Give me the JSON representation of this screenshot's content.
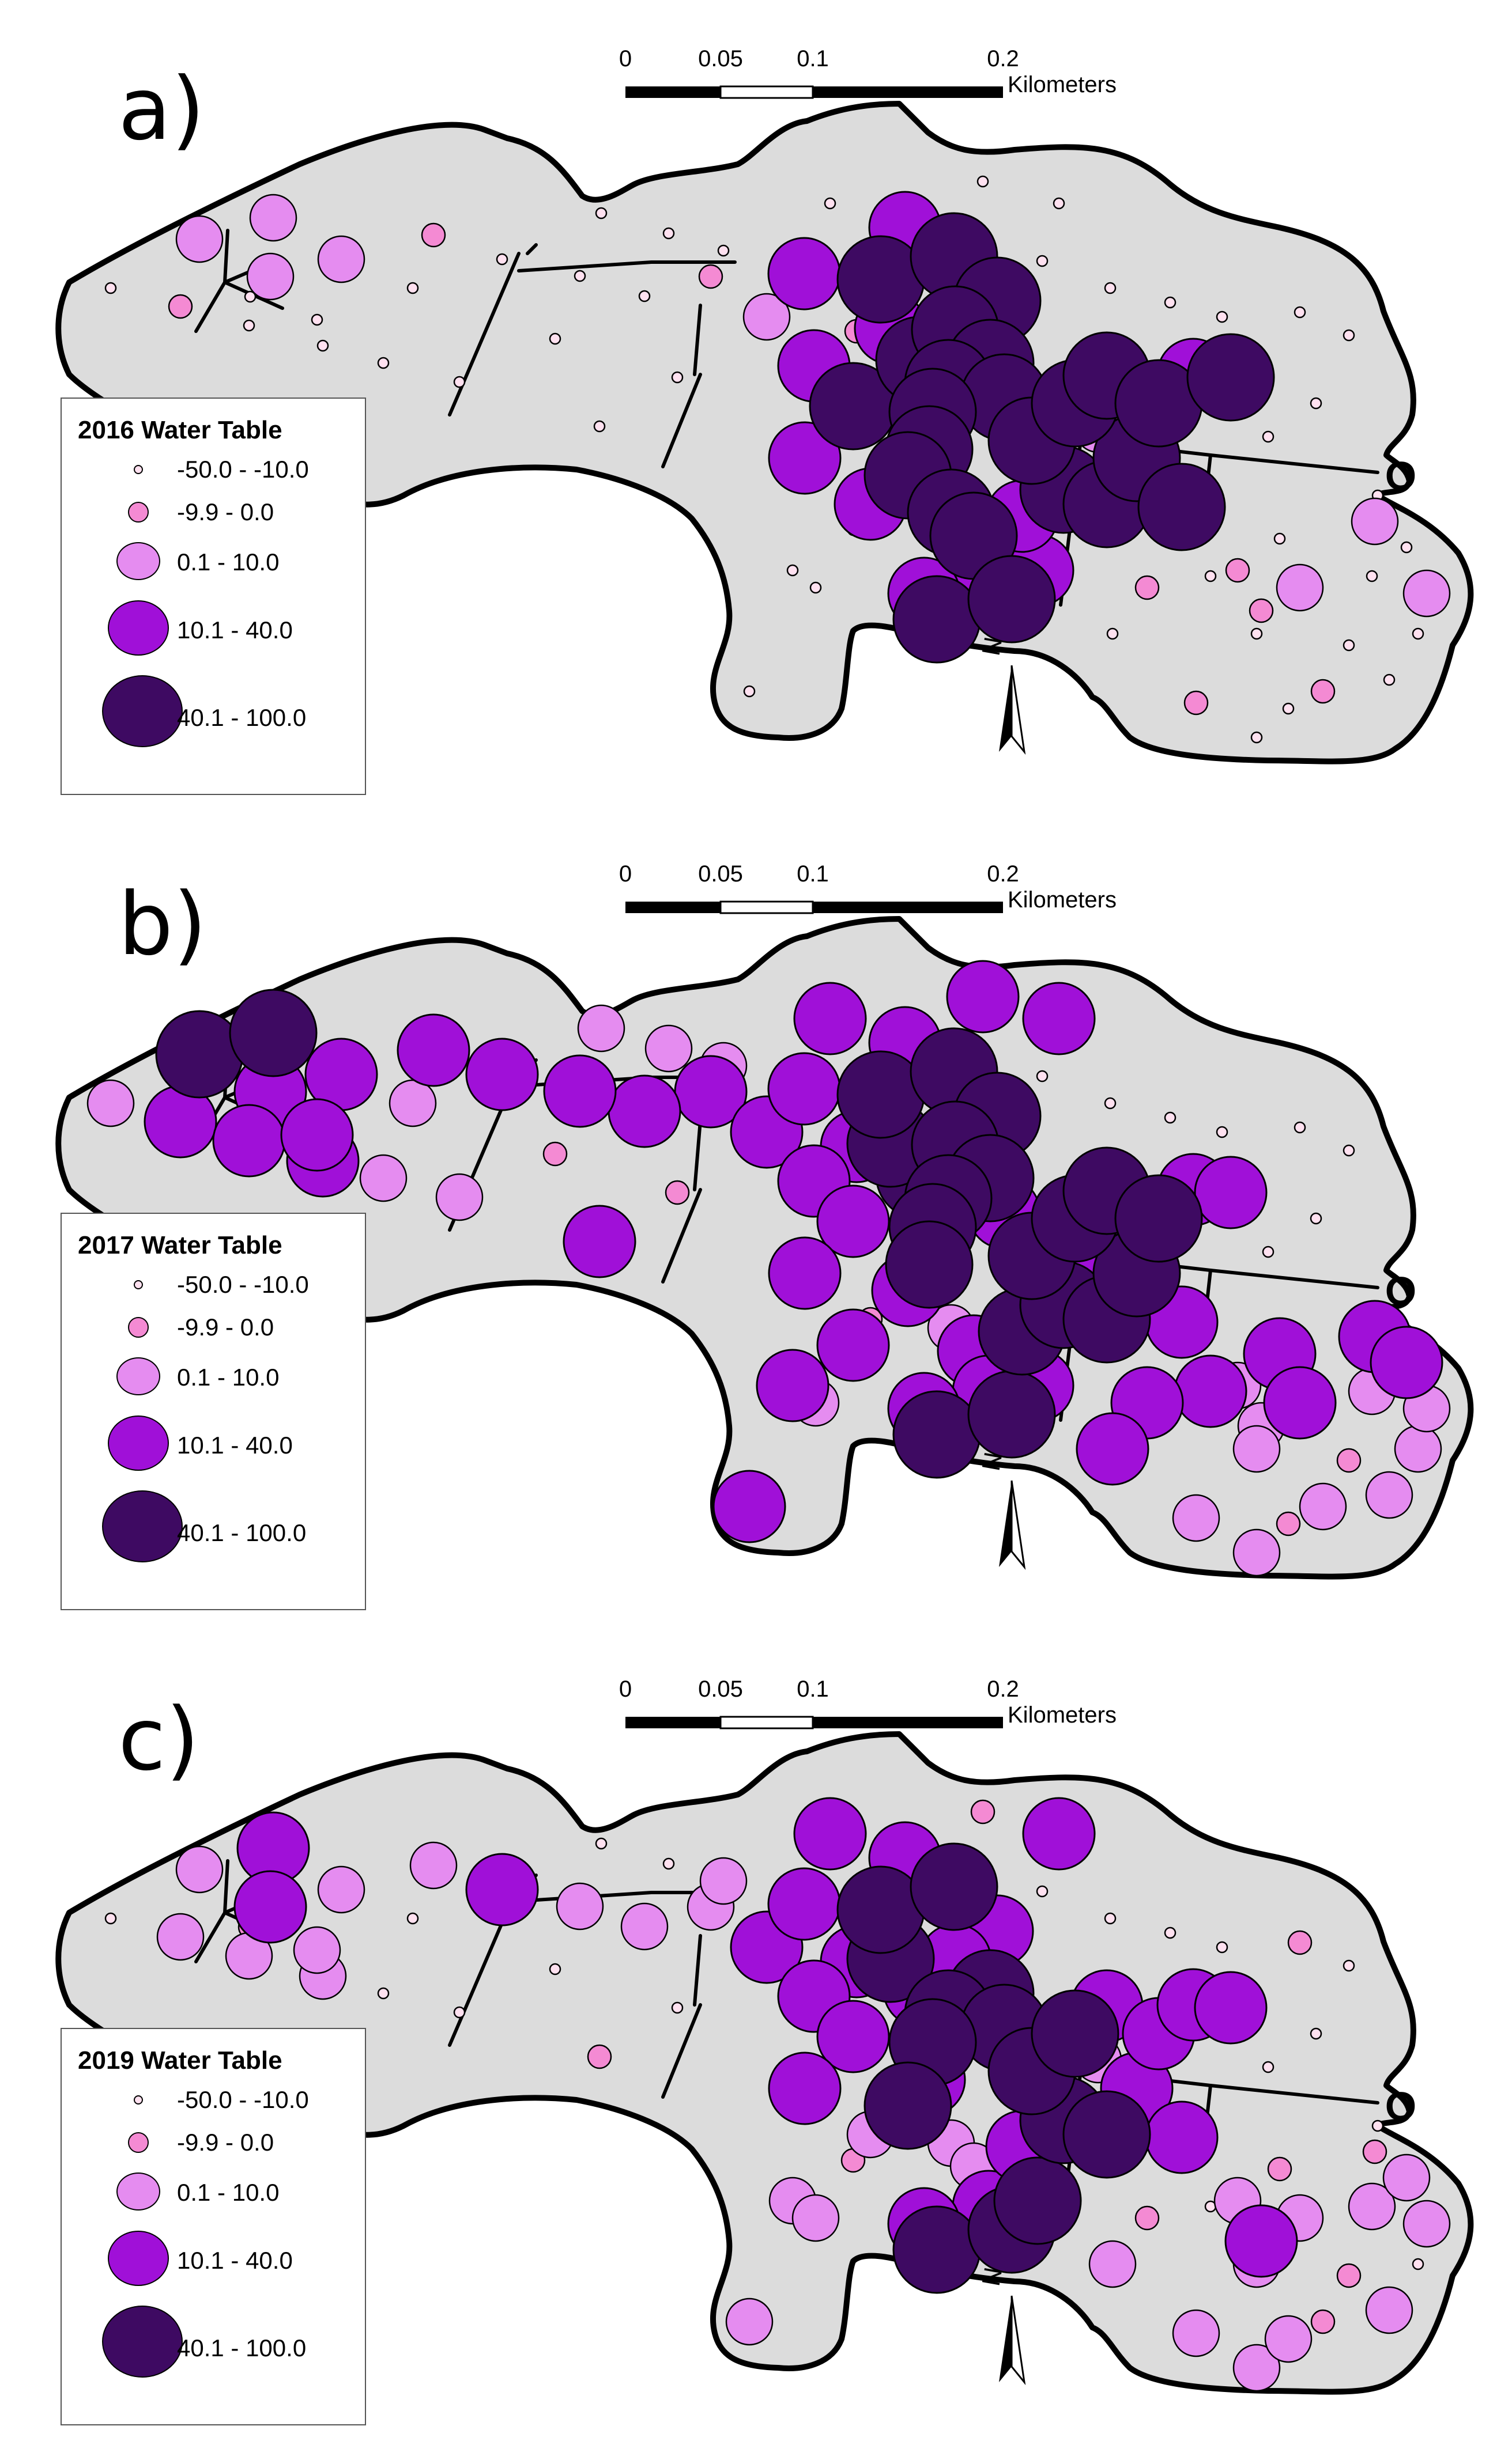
{
  "colors": {
    "study_area_fill": "#dcdcdc",
    "outline": "#000000",
    "class_1": "#ffe1f0",
    "class_2": "#f48ad3",
    "class_3": "#e58cf0",
    "class_4": "#a010d8",
    "class_5": "#3e0a62"
  },
  "scale_bar": {
    "ticks": [
      "0",
      "0.05",
      "0.1",
      "0.2"
    ],
    "unit": "Kilometers"
  },
  "north_arrow": {
    "label": "N"
  },
  "outlet_symbol": "O",
  "classes": [
    {
      "label": "-50.0 - -10.0",
      "color": "#ffe1f0"
    },
    {
      "label": "-9.9 - 0.0",
      "color": "#f48ad3"
    },
    {
      "label": "0.1 - 10.0",
      "color": "#e58cf0"
    },
    {
      "label": "10.1 - 40.0",
      "color": "#a010d8"
    },
    {
      "label": "40.1 - 100.0",
      "color": "#3e0a62"
    }
  ],
  "panels": [
    {
      "label": "a)",
      "legend_title": "2016 Water Table"
    },
    {
      "label": "b)",
      "legend_title": "2017 Water Table"
    },
    {
      "label": "c)",
      "legend_title": "2019 Water Table"
    }
  ]
}
